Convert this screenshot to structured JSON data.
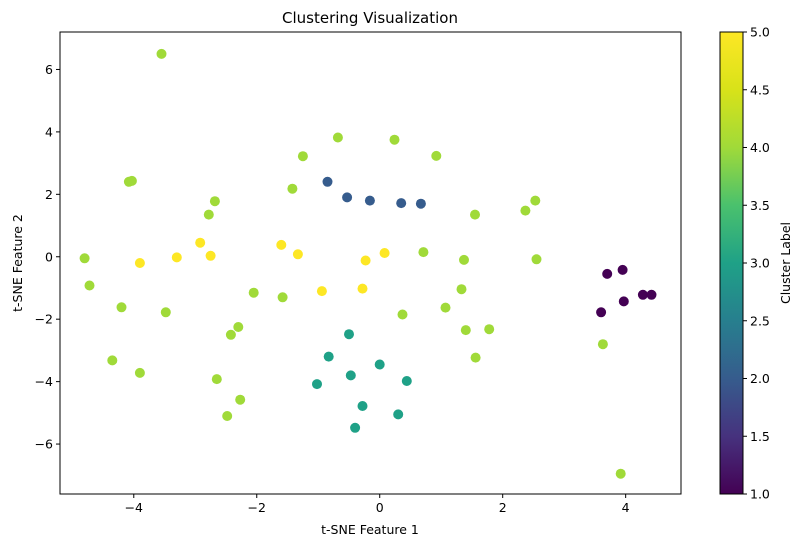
{
  "chart_data": {
    "type": "scatter",
    "title": "Clustering Visualization",
    "xlabel": "t-SNE Feature 1",
    "ylabel": "t-SNE Feature 2",
    "xlim": [
      -5.2,
      4.9
    ],
    "ylim": [
      -7.6,
      7.2
    ],
    "xticks": [
      -4,
      -2,
      0,
      2,
      4
    ],
    "yticks": [
      -6,
      -4,
      -2,
      0,
      2,
      4,
      6
    ],
    "colorbar": {
      "label": "Cluster Label",
      "range": [
        1.0,
        5.0
      ],
      "ticks": [
        "1.0",
        "1.5",
        "2.0",
        "2.5",
        "3.0",
        "3.5",
        "4.0",
        "4.5",
        "5.0"
      ],
      "colormap": "viridis"
    },
    "grid": false,
    "points": [
      {
        "x": -3.55,
        "y": 6.5,
        "c": 4
      },
      {
        "x": -4.8,
        "y": -0.05,
        "c": 4
      },
      {
        "x": -4.72,
        "y": -0.92,
        "c": 4
      },
      {
        "x": -4.35,
        "y": -3.32,
        "c": 4
      },
      {
        "x": -4.2,
        "y": -1.62,
        "c": 4
      },
      {
        "x": -4.08,
        "y": 2.4,
        "c": 4
      },
      {
        "x": -4.03,
        "y": 2.43,
        "c": 4
      },
      {
        "x": -3.9,
        "y": -3.72,
        "c": 4
      },
      {
        "x": -3.48,
        "y": -1.78,
        "c": 4
      },
      {
        "x": -2.78,
        "y": 1.35,
        "c": 4
      },
      {
        "x": -2.68,
        "y": 1.78,
        "c": 4
      },
      {
        "x": -2.65,
        "y": -3.92,
        "c": 4
      },
      {
        "x": -2.48,
        "y": -5.1,
        "c": 4
      },
      {
        "x": -2.42,
        "y": -2.5,
        "c": 4
      },
      {
        "x": -2.3,
        "y": -2.25,
        "c": 4
      },
      {
        "x": -2.27,
        "y": -4.58,
        "c": 4
      },
      {
        "x": -2.05,
        "y": -1.15,
        "c": 4
      },
      {
        "x": -1.58,
        "y": -1.3,
        "c": 4
      },
      {
        "x": -1.42,
        "y": 2.18,
        "c": 4
      },
      {
        "x": -1.25,
        "y": 3.22,
        "c": 4
      },
      {
        "x": -0.68,
        "y": 3.82,
        "c": 4
      },
      {
        "x": 0.24,
        "y": 3.75,
        "c": 4
      },
      {
        "x": 0.37,
        "y": -1.85,
        "c": 4
      },
      {
        "x": 0.71,
        "y": 0.15,
        "c": 4
      },
      {
        "x": 0.92,
        "y": 3.23,
        "c": 4
      },
      {
        "x": 1.07,
        "y": -1.63,
        "c": 4
      },
      {
        "x": 1.33,
        "y": -1.04,
        "c": 4
      },
      {
        "x": 1.37,
        "y": -0.1,
        "c": 4
      },
      {
        "x": 1.4,
        "y": -2.35,
        "c": 4
      },
      {
        "x": 1.55,
        "y": 1.35,
        "c": 4
      },
      {
        "x": 1.56,
        "y": -3.23,
        "c": 4
      },
      {
        "x": 1.78,
        "y": -2.32,
        "c": 4
      },
      {
        "x": 2.37,
        "y": 1.48,
        "c": 4
      },
      {
        "x": 2.53,
        "y": 1.8,
        "c": 4
      },
      {
        "x": 2.55,
        "y": -0.08,
        "c": 4
      },
      {
        "x": 3.63,
        "y": -2.8,
        "c": 4
      },
      {
        "x": 3.92,
        "y": -6.95,
        "c": 4
      },
      {
        "x": -3.9,
        "y": -0.2,
        "c": 5
      },
      {
        "x": -3.3,
        "y": -0.02,
        "c": 5
      },
      {
        "x": -2.92,
        "y": 0.45,
        "c": 5
      },
      {
        "x": -2.75,
        "y": 0.03,
        "c": 5
      },
      {
        "x": -1.6,
        "y": 0.38,
        "c": 5
      },
      {
        "x": -1.33,
        "y": 0.08,
        "c": 5
      },
      {
        "x": -0.94,
        "y": -1.1,
        "c": 5
      },
      {
        "x": -0.28,
        "y": -1.02,
        "c": 5
      },
      {
        "x": -0.23,
        "y": -0.12,
        "c": 5
      },
      {
        "x": 0.08,
        "y": 0.12,
        "c": 5
      },
      {
        "x": -0.85,
        "y": 2.4,
        "c": 2
      },
      {
        "x": -0.53,
        "y": 1.9,
        "c": 2
      },
      {
        "x": -0.16,
        "y": 1.8,
        "c": 2
      },
      {
        "x": 0.35,
        "y": 1.72,
        "c": 2
      },
      {
        "x": 0.67,
        "y": 1.7,
        "c": 2
      },
      {
        "x": -1.02,
        "y": -4.08,
        "c": 3
      },
      {
        "x": -0.83,
        "y": -3.2,
        "c": 3
      },
      {
        "x": -0.5,
        "y": -2.48,
        "c": 3
      },
      {
        "x": -0.47,
        "y": -3.8,
        "c": 3
      },
      {
        "x": -0.4,
        "y": -5.48,
        "c": 3
      },
      {
        "x": -0.28,
        "y": -4.78,
        "c": 3
      },
      {
        "x": 0.0,
        "y": -3.45,
        "c": 3
      },
      {
        "x": 0.3,
        "y": -5.05,
        "c": 3
      },
      {
        "x": 0.44,
        "y": -3.98,
        "c": 3
      },
      {
        "x": 3.6,
        "y": -1.78,
        "c": 1
      },
      {
        "x": 3.7,
        "y": -0.55,
        "c": 1
      },
      {
        "x": 3.95,
        "y": -0.42,
        "c": 1
      },
      {
        "x": 3.97,
        "y": -1.43,
        "c": 1
      },
      {
        "x": 4.28,
        "y": -1.22,
        "c": 1
      },
      {
        "x": 4.42,
        "y": -1.22,
        "c": 1
      }
    ]
  }
}
